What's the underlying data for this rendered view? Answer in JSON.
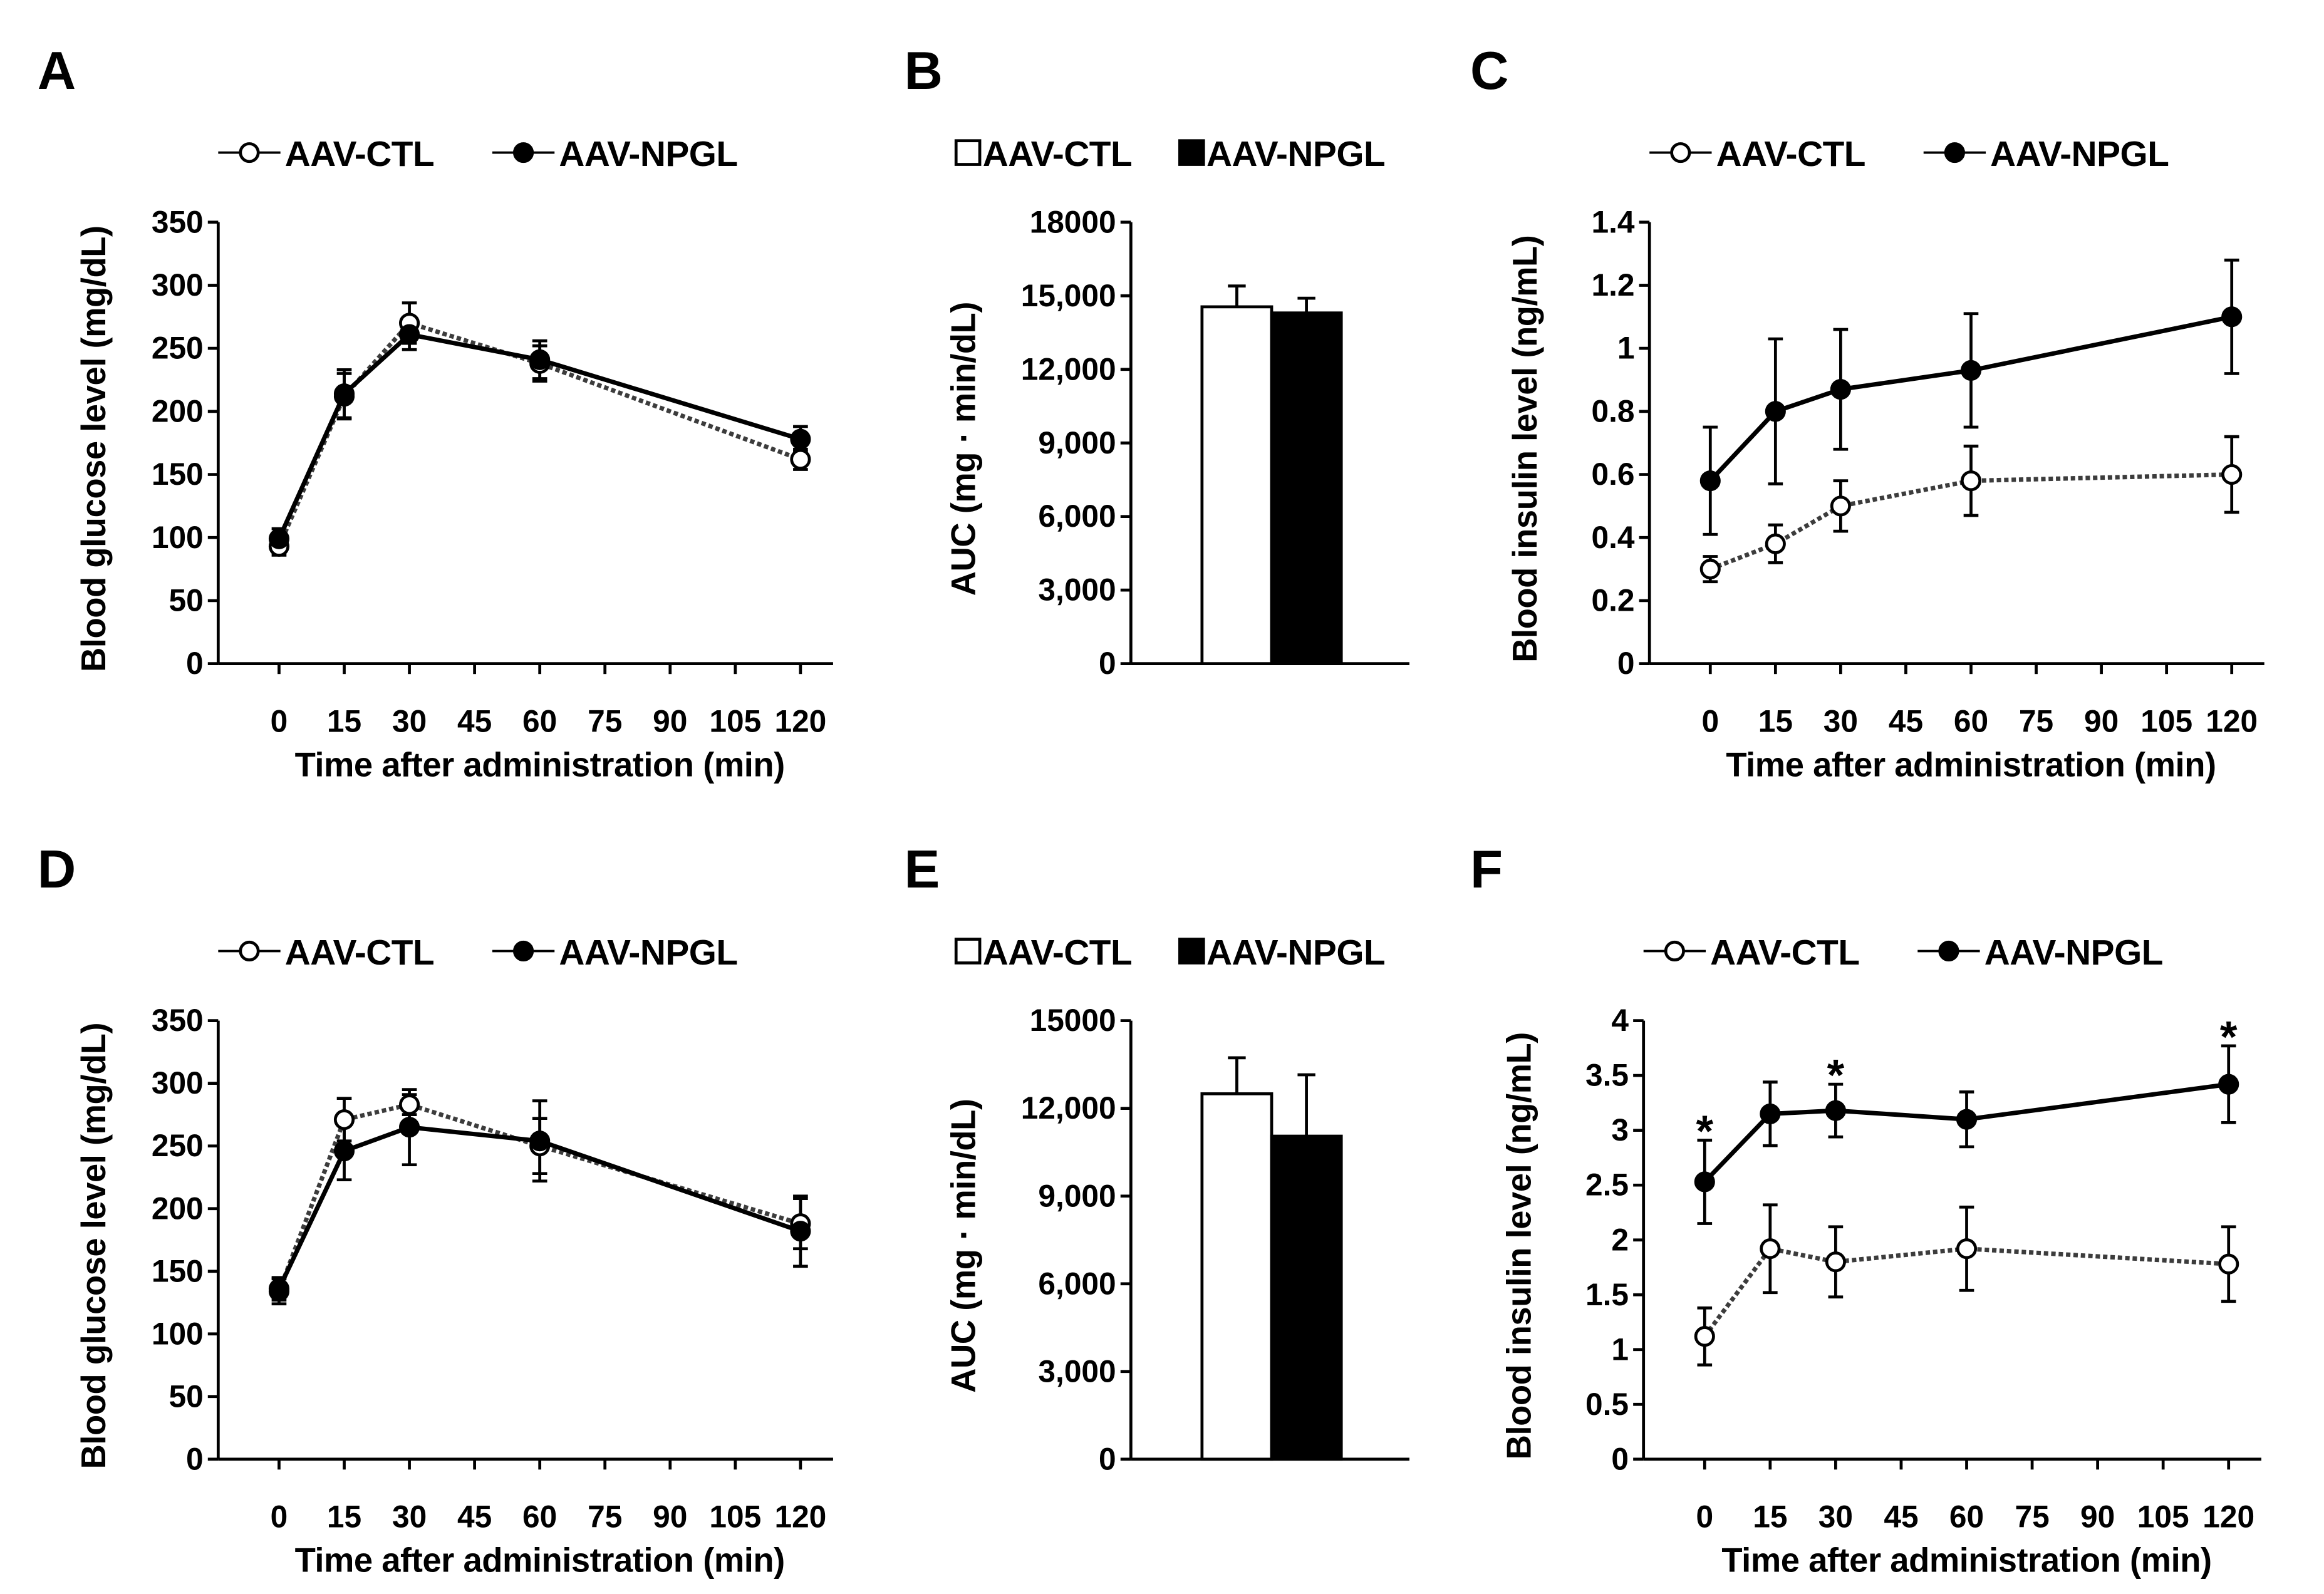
{
  "colors": {
    "ink": "#000000",
    "ctl_fill": "#ffffff",
    "npgl_fill": "#000000",
    "background": "#ffffff"
  },
  "chart_data": [
    {
      "panel": "A",
      "type": "line",
      "xlabel": "Time after administration (min)",
      "ylabel": "Blood glucose level (mg/dL)",
      "xlim": [
        -14,
        127.5
      ],
      "xticks": [
        0,
        15,
        30,
        45,
        60,
        75,
        90,
        105,
        120
      ],
      "xtick_labels": [
        "0",
        "15",
        "30",
        "45",
        "60",
        "75",
        "90",
        "105",
        "120"
      ],
      "ylim": [
        0,
        350
      ],
      "yticks": [
        0,
        50,
        100,
        150,
        200,
        250,
        300,
        350
      ],
      "ytick_labels": [
        "0",
        "50",
        "100",
        "150",
        "200",
        "250",
        "300",
        "350"
      ],
      "x": [
        0,
        15,
        30,
        60,
        120
      ],
      "series": [
        {
          "name": "AAV-CTL",
          "marker": "open-circle",
          "values": [
            93,
            212,
            270,
            238,
            162
          ],
          "errors": [
            7,
            18,
            16,
            14,
            8
          ]
        },
        {
          "name": "AAV-NPGL",
          "marker": "filled-circle",
          "values": [
            99,
            214,
            261,
            241,
            178
          ],
          "errors": [
            8,
            19,
            12,
            15,
            10
          ]
        }
      ],
      "annotations": []
    },
    {
      "panel": "B",
      "type": "bar",
      "ylabel": "AUC (mg · min/dL)",
      "ylim": [
        0,
        18000
      ],
      "yticks": [
        0,
        3000,
        6000,
        9000,
        12000,
        15000,
        18000
      ],
      "ytick_labels": [
        "0",
        "3,000",
        "6,000",
        "9,000",
        "12,000",
        "15,000",
        "18000"
      ],
      "series": [
        {
          "name": "AAV-CTL",
          "marker": "open-square",
          "values": [
            14550
          ],
          "errors": [
            850
          ]
        },
        {
          "name": "AAV-NPGL",
          "marker": "filled-square",
          "values": [
            14300
          ],
          "errors": [
            600
          ]
        }
      ],
      "annotations": []
    },
    {
      "panel": "C",
      "type": "line",
      "xlabel": "Time after administration (min)",
      "ylabel": "Blood insulin level (ng/mL)",
      "xlim": [
        -14,
        127.5
      ],
      "xticks": [
        0,
        15,
        30,
        45,
        60,
        75,
        90,
        105,
        120
      ],
      "xtick_labels": [
        "0",
        "15",
        "30",
        "45",
        "60",
        "75",
        "90",
        "105",
        "120"
      ],
      "ylim": [
        0,
        1.4
      ],
      "yticks": [
        0,
        0.2,
        0.4,
        0.6,
        0.8,
        1.0,
        1.2,
        1.4
      ],
      "ytick_labels": [
        "0",
        "0.2",
        "0.4",
        "0.6",
        "0.8",
        "1",
        "1.2",
        "1.4"
      ],
      "x": [
        0,
        15,
        30,
        60,
        120
      ],
      "series": [
        {
          "name": "AAV-CTL",
          "marker": "open-circle",
          "values": [
            0.3,
            0.38,
            0.5,
            0.58,
            0.6
          ],
          "errors": [
            0.04,
            0.06,
            0.08,
            0.11,
            0.12
          ]
        },
        {
          "name": "AAV-NPGL",
          "marker": "filled-circle",
          "values": [
            0.58,
            0.8,
            0.87,
            0.93,
            1.1
          ],
          "errors": [
            0.17,
            0.23,
            0.19,
            0.18,
            0.18
          ]
        }
      ],
      "annotations": []
    },
    {
      "panel": "D",
      "type": "line",
      "xlabel": "Time after administration (min)",
      "ylabel": "Blood glucose level (mg/dL)",
      "xlim": [
        -14,
        127.5
      ],
      "xticks": [
        0,
        15,
        30,
        45,
        60,
        75,
        90,
        105,
        120
      ],
      "xtick_labels": [
        "0",
        "15",
        "30",
        "45",
        "60",
        "75",
        "90",
        "105",
        "120"
      ],
      "ylim": [
        0,
        350
      ],
      "yticks": [
        0,
        50,
        100,
        150,
        200,
        250,
        300,
        350
      ],
      "ytick_labels": [
        "0",
        "50",
        "100",
        "150",
        "200",
        "250",
        "300",
        "350"
      ],
      "x": [
        0,
        15,
        30,
        60,
        120
      ],
      "series": [
        {
          "name": "AAV-CTL",
          "marker": "open-circle",
          "values": [
            134,
            271,
            283,
            250,
            188
          ],
          "errors": [
            10,
            17,
            8,
            22,
            20
          ]
        },
        {
          "name": "AAV-NPGL",
          "marker": "filled-circle",
          "values": [
            136,
            246,
            265,
            254,
            182
          ],
          "errors": [
            9,
            23,
            30,
            32,
            28
          ]
        }
      ],
      "annotations": []
    },
    {
      "panel": "E",
      "type": "bar",
      "ylabel": "AUC (mg · min/dL)",
      "ylim": [
        0,
        15000
      ],
      "yticks": [
        0,
        3000,
        6000,
        9000,
        12000,
        15000
      ],
      "ytick_labels": [
        "0",
        "3,000",
        "6,000",
        "9,000",
        "12,000",
        "15000"
      ],
      "series": [
        {
          "name": "AAV-CTL",
          "marker": "open-square",
          "values": [
            12500
          ],
          "errors": [
            1230
          ]
        },
        {
          "name": "AAV-NPGL",
          "marker": "filled-square",
          "values": [
            11050
          ],
          "errors": [
            2100
          ]
        }
      ],
      "annotations": []
    },
    {
      "panel": "F",
      "type": "line",
      "xlabel": "Time after administration (min)",
      "ylabel": "Blood insulin level (ng/mL)",
      "xlim": [
        -14,
        127.5
      ],
      "xticks": [
        0,
        15,
        30,
        45,
        60,
        75,
        90,
        105,
        120
      ],
      "xtick_labels": [
        "0",
        "15",
        "30",
        "45",
        "60",
        "75",
        "90",
        "105",
        "120"
      ],
      "ylim": [
        0,
        4
      ],
      "yticks": [
        0,
        0.5,
        1,
        1.5,
        2,
        2.5,
        3,
        3.5,
        4
      ],
      "ytick_labels": [
        "0",
        "0.5",
        "1",
        "1.5",
        "2",
        "2.5",
        "3",
        "3.5",
        "4"
      ],
      "x": [
        0,
        15,
        30,
        60,
        120
      ],
      "series": [
        {
          "name": "AAV-CTL",
          "marker": "open-circle",
          "values": [
            1.12,
            1.92,
            1.8,
            1.92,
            1.78
          ],
          "errors": [
            0.26,
            0.4,
            0.32,
            0.38,
            0.34
          ]
        },
        {
          "name": "AAV-NPGL",
          "marker": "filled-circle",
          "values": [
            2.53,
            3.15,
            3.18,
            3.1,
            3.42
          ],
          "errors": [
            0.38,
            0.29,
            0.24,
            0.25,
            0.35
          ]
        }
      ],
      "annotations": [
        {
          "x": 0,
          "series": 1,
          "text": "*"
        },
        {
          "x": 30,
          "series": 1,
          "text": "*"
        },
        {
          "x": 120,
          "series": 1,
          "text": "*"
        }
      ]
    }
  ]
}
